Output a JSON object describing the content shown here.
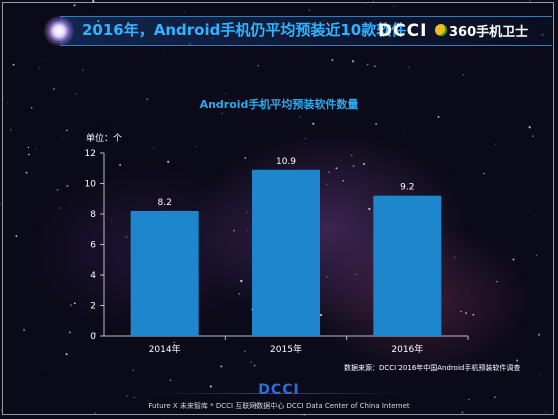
{
  "header": {
    "title": "2016年，Android手机仍平均预装近10款软件",
    "brand_dcci": "DCCI",
    "brand_360": "360手机卫士"
  },
  "chart_data": {
    "type": "bar",
    "title": "Android手机平均预装软件数量",
    "unit_label": "单位：个",
    "categories": [
      "2014年",
      "2015年",
      "2016年"
    ],
    "values": [
      8.2,
      10.9,
      9.2
    ],
    "value_labels": [
      "8.2",
      "10.9",
      "9.2"
    ],
    "ylim": [
      0,
      12
    ],
    "yticks": [
      "0",
      "2",
      "4",
      "6",
      "8",
      "10",
      "12"
    ],
    "bar_color": "#1e86cc",
    "grid": false,
    "legend": "none"
  },
  "source": "数据来源：DCCI 2016年中国Android手机预装软件调查",
  "footer": {
    "logo": "DCCI",
    "text": "Future X 未来智库 * DCCI 互联网数据中心  DCCI Data Center of China Internet"
  },
  "colors": {
    "title_blue": "#2fb4ff",
    "accent_blue": "#28aaf0",
    "background": "#0b0a18"
  }
}
